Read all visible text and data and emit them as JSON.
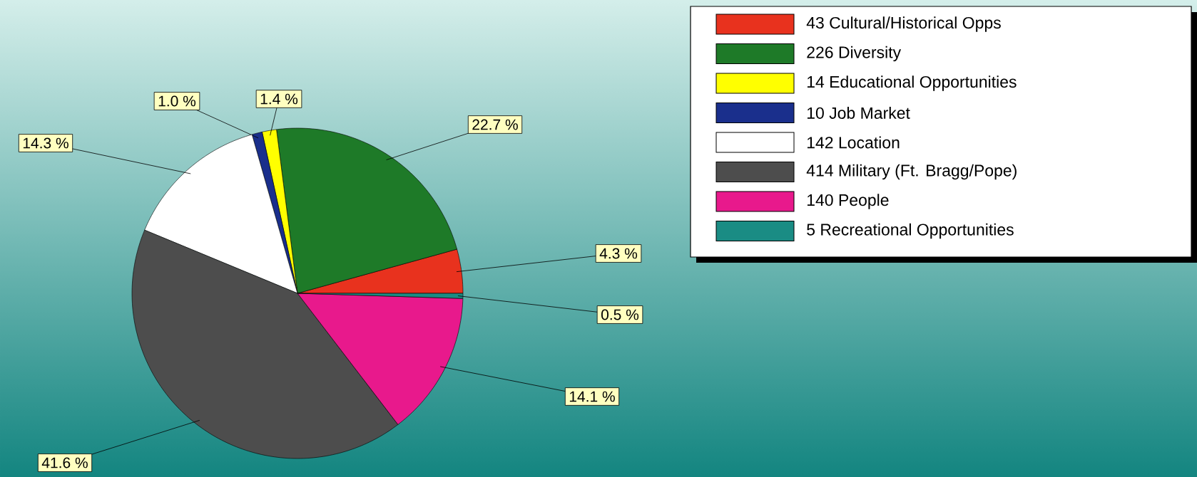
{
  "chart_data": {
    "type": "pie",
    "categories": [
      "43 Cultural/Historical Opps",
      "226 Diversity",
      "14 Educational Opportunities",
      "10 Job Market",
      "142 Location",
      "414 Military (Ft. Bragg/Pope)",
      "140 People",
      "5 Recreational Opportunities"
    ],
    "values": [
      4.3,
      22.7,
      1.4,
      1.0,
      14.3,
      41.6,
      14.1,
      0.5
    ],
    "value_labels": [
      "4.3 %",
      "22.7 %",
      "1.4 %",
      "1.0 %",
      "14.3 %",
      "41.6 %",
      "14.1 %",
      "0.5 %"
    ],
    "colors": [
      "#e8321e",
      "#1e7a28",
      "#ffff00",
      "#1a2f8c",
      "#ffffff",
      "#4d4d4d",
      "#e8198c",
      "#1a8c84"
    ],
    "legend": "top right"
  }
}
